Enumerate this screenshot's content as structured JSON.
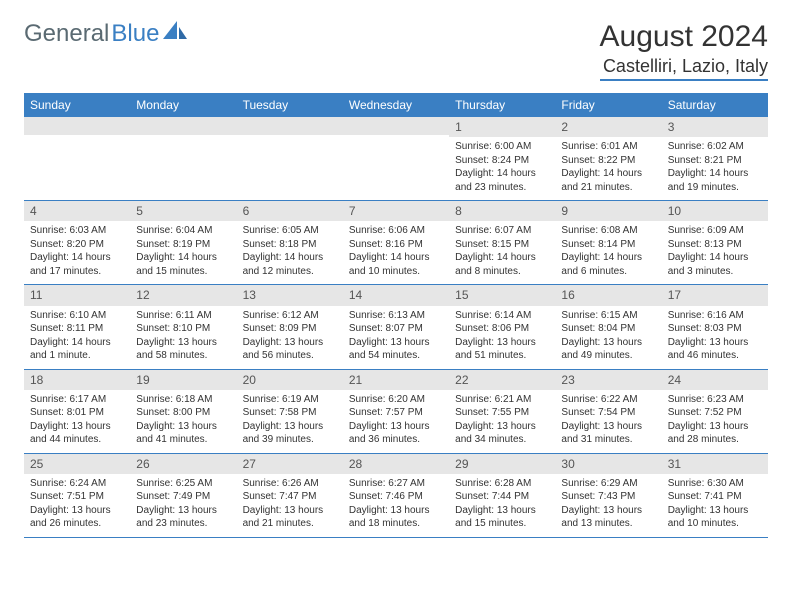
{
  "logo": {
    "text1": "General",
    "text2": "Blue"
  },
  "header": {
    "month_title": "August 2024",
    "location": "Castelliri, Lazio, Italy"
  },
  "colors": {
    "brand_blue": "#3a7fc3",
    "logo_gray": "#5a6a72",
    "day_header_bg": "#e6e6e6",
    "text": "#333333"
  },
  "days_of_week": [
    "Sunday",
    "Monday",
    "Tuesday",
    "Wednesday",
    "Thursday",
    "Friday",
    "Saturday"
  ],
  "weeks": [
    [
      {
        "n": "",
        "sunrise": "",
        "sunset": "",
        "daylight": "",
        "empty": true
      },
      {
        "n": "",
        "sunrise": "",
        "sunset": "",
        "daylight": "",
        "empty": true
      },
      {
        "n": "",
        "sunrise": "",
        "sunset": "",
        "daylight": "",
        "empty": true
      },
      {
        "n": "",
        "sunrise": "",
        "sunset": "",
        "daylight": "",
        "empty": true
      },
      {
        "n": "1",
        "sunrise": "Sunrise: 6:00 AM",
        "sunset": "Sunset: 8:24 PM",
        "daylight": "Daylight: 14 hours and 23 minutes."
      },
      {
        "n": "2",
        "sunrise": "Sunrise: 6:01 AM",
        "sunset": "Sunset: 8:22 PM",
        "daylight": "Daylight: 14 hours and 21 minutes."
      },
      {
        "n": "3",
        "sunrise": "Sunrise: 6:02 AM",
        "sunset": "Sunset: 8:21 PM",
        "daylight": "Daylight: 14 hours and 19 minutes."
      }
    ],
    [
      {
        "n": "4",
        "sunrise": "Sunrise: 6:03 AM",
        "sunset": "Sunset: 8:20 PM",
        "daylight": "Daylight: 14 hours and 17 minutes."
      },
      {
        "n": "5",
        "sunrise": "Sunrise: 6:04 AM",
        "sunset": "Sunset: 8:19 PM",
        "daylight": "Daylight: 14 hours and 15 minutes."
      },
      {
        "n": "6",
        "sunrise": "Sunrise: 6:05 AM",
        "sunset": "Sunset: 8:18 PM",
        "daylight": "Daylight: 14 hours and 12 minutes."
      },
      {
        "n": "7",
        "sunrise": "Sunrise: 6:06 AM",
        "sunset": "Sunset: 8:16 PM",
        "daylight": "Daylight: 14 hours and 10 minutes."
      },
      {
        "n": "8",
        "sunrise": "Sunrise: 6:07 AM",
        "sunset": "Sunset: 8:15 PM",
        "daylight": "Daylight: 14 hours and 8 minutes."
      },
      {
        "n": "9",
        "sunrise": "Sunrise: 6:08 AM",
        "sunset": "Sunset: 8:14 PM",
        "daylight": "Daylight: 14 hours and 6 minutes."
      },
      {
        "n": "10",
        "sunrise": "Sunrise: 6:09 AM",
        "sunset": "Sunset: 8:13 PM",
        "daylight": "Daylight: 14 hours and 3 minutes."
      }
    ],
    [
      {
        "n": "11",
        "sunrise": "Sunrise: 6:10 AM",
        "sunset": "Sunset: 8:11 PM",
        "daylight": "Daylight: 14 hours and 1 minute."
      },
      {
        "n": "12",
        "sunrise": "Sunrise: 6:11 AM",
        "sunset": "Sunset: 8:10 PM",
        "daylight": "Daylight: 13 hours and 58 minutes."
      },
      {
        "n": "13",
        "sunrise": "Sunrise: 6:12 AM",
        "sunset": "Sunset: 8:09 PM",
        "daylight": "Daylight: 13 hours and 56 minutes."
      },
      {
        "n": "14",
        "sunrise": "Sunrise: 6:13 AM",
        "sunset": "Sunset: 8:07 PM",
        "daylight": "Daylight: 13 hours and 54 minutes."
      },
      {
        "n": "15",
        "sunrise": "Sunrise: 6:14 AM",
        "sunset": "Sunset: 8:06 PM",
        "daylight": "Daylight: 13 hours and 51 minutes."
      },
      {
        "n": "16",
        "sunrise": "Sunrise: 6:15 AM",
        "sunset": "Sunset: 8:04 PM",
        "daylight": "Daylight: 13 hours and 49 minutes."
      },
      {
        "n": "17",
        "sunrise": "Sunrise: 6:16 AM",
        "sunset": "Sunset: 8:03 PM",
        "daylight": "Daylight: 13 hours and 46 minutes."
      }
    ],
    [
      {
        "n": "18",
        "sunrise": "Sunrise: 6:17 AM",
        "sunset": "Sunset: 8:01 PM",
        "daylight": "Daylight: 13 hours and 44 minutes."
      },
      {
        "n": "19",
        "sunrise": "Sunrise: 6:18 AM",
        "sunset": "Sunset: 8:00 PM",
        "daylight": "Daylight: 13 hours and 41 minutes."
      },
      {
        "n": "20",
        "sunrise": "Sunrise: 6:19 AM",
        "sunset": "Sunset: 7:58 PM",
        "daylight": "Daylight: 13 hours and 39 minutes."
      },
      {
        "n": "21",
        "sunrise": "Sunrise: 6:20 AM",
        "sunset": "Sunset: 7:57 PM",
        "daylight": "Daylight: 13 hours and 36 minutes."
      },
      {
        "n": "22",
        "sunrise": "Sunrise: 6:21 AM",
        "sunset": "Sunset: 7:55 PM",
        "daylight": "Daylight: 13 hours and 34 minutes."
      },
      {
        "n": "23",
        "sunrise": "Sunrise: 6:22 AM",
        "sunset": "Sunset: 7:54 PM",
        "daylight": "Daylight: 13 hours and 31 minutes."
      },
      {
        "n": "24",
        "sunrise": "Sunrise: 6:23 AM",
        "sunset": "Sunset: 7:52 PM",
        "daylight": "Daylight: 13 hours and 28 minutes."
      }
    ],
    [
      {
        "n": "25",
        "sunrise": "Sunrise: 6:24 AM",
        "sunset": "Sunset: 7:51 PM",
        "daylight": "Daylight: 13 hours and 26 minutes."
      },
      {
        "n": "26",
        "sunrise": "Sunrise: 6:25 AM",
        "sunset": "Sunset: 7:49 PM",
        "daylight": "Daylight: 13 hours and 23 minutes."
      },
      {
        "n": "27",
        "sunrise": "Sunrise: 6:26 AM",
        "sunset": "Sunset: 7:47 PM",
        "daylight": "Daylight: 13 hours and 21 minutes."
      },
      {
        "n": "28",
        "sunrise": "Sunrise: 6:27 AM",
        "sunset": "Sunset: 7:46 PM",
        "daylight": "Daylight: 13 hours and 18 minutes."
      },
      {
        "n": "29",
        "sunrise": "Sunrise: 6:28 AM",
        "sunset": "Sunset: 7:44 PM",
        "daylight": "Daylight: 13 hours and 15 minutes."
      },
      {
        "n": "30",
        "sunrise": "Sunrise: 6:29 AM",
        "sunset": "Sunset: 7:43 PM",
        "daylight": "Daylight: 13 hours and 13 minutes."
      },
      {
        "n": "31",
        "sunrise": "Sunrise: 6:30 AM",
        "sunset": "Sunset: 7:41 PM",
        "daylight": "Daylight: 13 hours and 10 minutes."
      }
    ]
  ]
}
